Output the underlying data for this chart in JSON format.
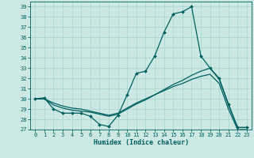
{
  "xlabel": "Humidex (Indice chaleur)",
  "bg_color": "#cce8e4",
  "grid_color": "#aad8d0",
  "line_color": "#006060",
  "xlim": [
    -0.5,
    23.5
  ],
  "ylim": [
    27,
    39.5
  ],
  "yticks": [
    27,
    28,
    29,
    30,
    31,
    32,
    33,
    34,
    35,
    36,
    37,
    38,
    39
  ],
  "xticks": [
    0,
    1,
    2,
    3,
    4,
    5,
    6,
    7,
    8,
    9,
    10,
    11,
    12,
    13,
    14,
    15,
    16,
    17,
    18,
    19,
    20,
    21,
    22,
    23
  ],
  "series": [
    {
      "x": [
        0,
        1,
        2,
        3,
        4,
        5,
        6,
        7,
        8,
        9,
        10,
        11,
        12,
        13,
        14,
        15,
        16,
        17,
        18,
        19,
        20,
        21,
        22,
        23
      ],
      "y": [
        30,
        30.1,
        29.0,
        28.6,
        28.6,
        28.6,
        28.3,
        27.5,
        27.3,
        28.4,
        30.4,
        32.5,
        32.7,
        34.2,
        36.5,
        38.3,
        38.5,
        39.0,
        34.2,
        33.0,
        32.0,
        29.5,
        27.2,
        27.2
      ],
      "marker": true
    },
    {
      "x": [
        0,
        1,
        2,
        3,
        4,
        5,
        6,
        7,
        8,
        9,
        10,
        11,
        12,
        13,
        14,
        15,
        16,
        17,
        18,
        19,
        20,
        21,
        22,
        23
      ],
      "y": [
        30,
        30,
        29.4,
        29.1,
        28.9,
        28.8,
        28.7,
        28.5,
        28.3,
        28.5,
        29.0,
        29.5,
        29.9,
        30.4,
        30.9,
        31.4,
        31.8,
        32.3,
        32.7,
        33.0,
        31.9,
        29.4,
        27.2,
        27.2
      ],
      "marker": false
    },
    {
      "x": [
        0,
        1,
        2,
        3,
        4,
        5,
        6,
        7,
        8,
        9,
        10,
        11,
        12,
        13,
        14,
        15,
        16,
        17,
        18,
        19,
        20,
        21,
        22,
        23
      ],
      "y": [
        30,
        30,
        29.6,
        29.3,
        29.1,
        29.0,
        28.8,
        28.6,
        28.4,
        28.6,
        29.1,
        29.6,
        30.0,
        30.4,
        30.8,
        31.2,
        31.5,
        31.9,
        32.2,
        32.4,
        31.5,
        29.0,
        27.0,
        27.0
      ],
      "marker": false
    }
  ]
}
